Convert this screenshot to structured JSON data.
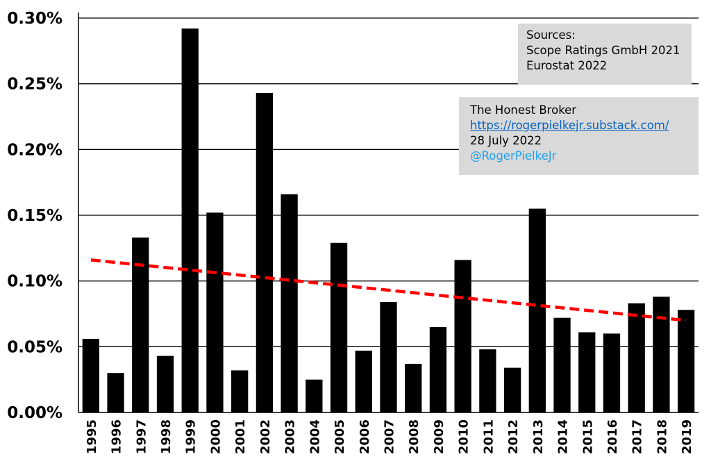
{
  "chart_data": {
    "type": "bar",
    "categories": [
      "1995",
      "1996",
      "1997",
      "1998",
      "1999",
      "2000",
      "2001",
      "2002",
      "2003",
      "2004",
      "2005",
      "2006",
      "2007",
      "2008",
      "2009",
      "2010",
      "2011",
      "2012",
      "2013",
      "2014",
      "2015",
      "2016",
      "2017",
      "2018",
      "2019"
    ],
    "values": [
      0.056,
      0.03,
      0.133,
      0.043,
      0.292,
      0.152,
      0.032,
      0.243,
      0.166,
      0.025,
      0.129,
      0.047,
      0.084,
      0.037,
      0.065,
      0.116,
      0.048,
      0.034,
      0.155,
      0.072,
      0.061,
      0.06,
      0.083,
      0.088,
      0.078
    ],
    "ylim": [
      0,
      0.3
    ],
    "yticks": [
      "0.00%",
      "0.05%",
      "0.10%",
      "0.15%",
      "0.20%",
      "0.25%",
      "0.30%"
    ],
    "trendline": {
      "start": 0.116,
      "end": 0.07,
      "color": "#ff0000",
      "style": "dashed"
    },
    "bar_color": "#000000",
    "grid": true,
    "title": "",
    "xlabel": "",
    "ylabel": ""
  },
  "annotations": {
    "sources": {
      "heading": "Sources:",
      "line1": "Scope Ratings GmbH 2021",
      "line2": "Eurostat 2022"
    },
    "credit": {
      "name": "The Honest Broker",
      "url": "https://rogerpielkejr.substack.com/",
      "date": "28 July 2022",
      "handle": "@RogerPielkeJr",
      "link_color": "#0563c1",
      "handle_color": "#1da1f2"
    }
  }
}
